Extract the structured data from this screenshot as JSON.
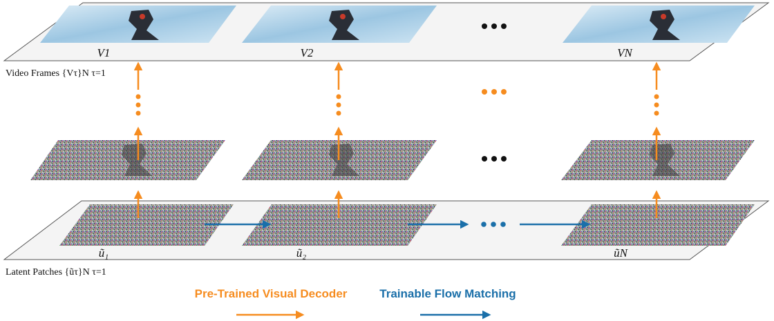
{
  "frames": {
    "labels": [
      "V1",
      "V2",
      "VN"
    ],
    "ellipsis": "•••",
    "side_label": "Video Frames {Vτ}N τ=1"
  },
  "latents": {
    "labels": [
      "ũ₁",
      "ũ₂",
      "ũN"
    ],
    "side_label": "Latent Patches {ũτ}N τ=1"
  },
  "legend": {
    "decoder_label": "Pre-Trained Visual Decoder",
    "flow_label": "Trainable Flow Matching"
  },
  "colors": {
    "decoder": "#F68C1F",
    "flow": "#1A6FA9",
    "plane_fill": "#F4F4F4",
    "plane_stroke": "#555555"
  }
}
